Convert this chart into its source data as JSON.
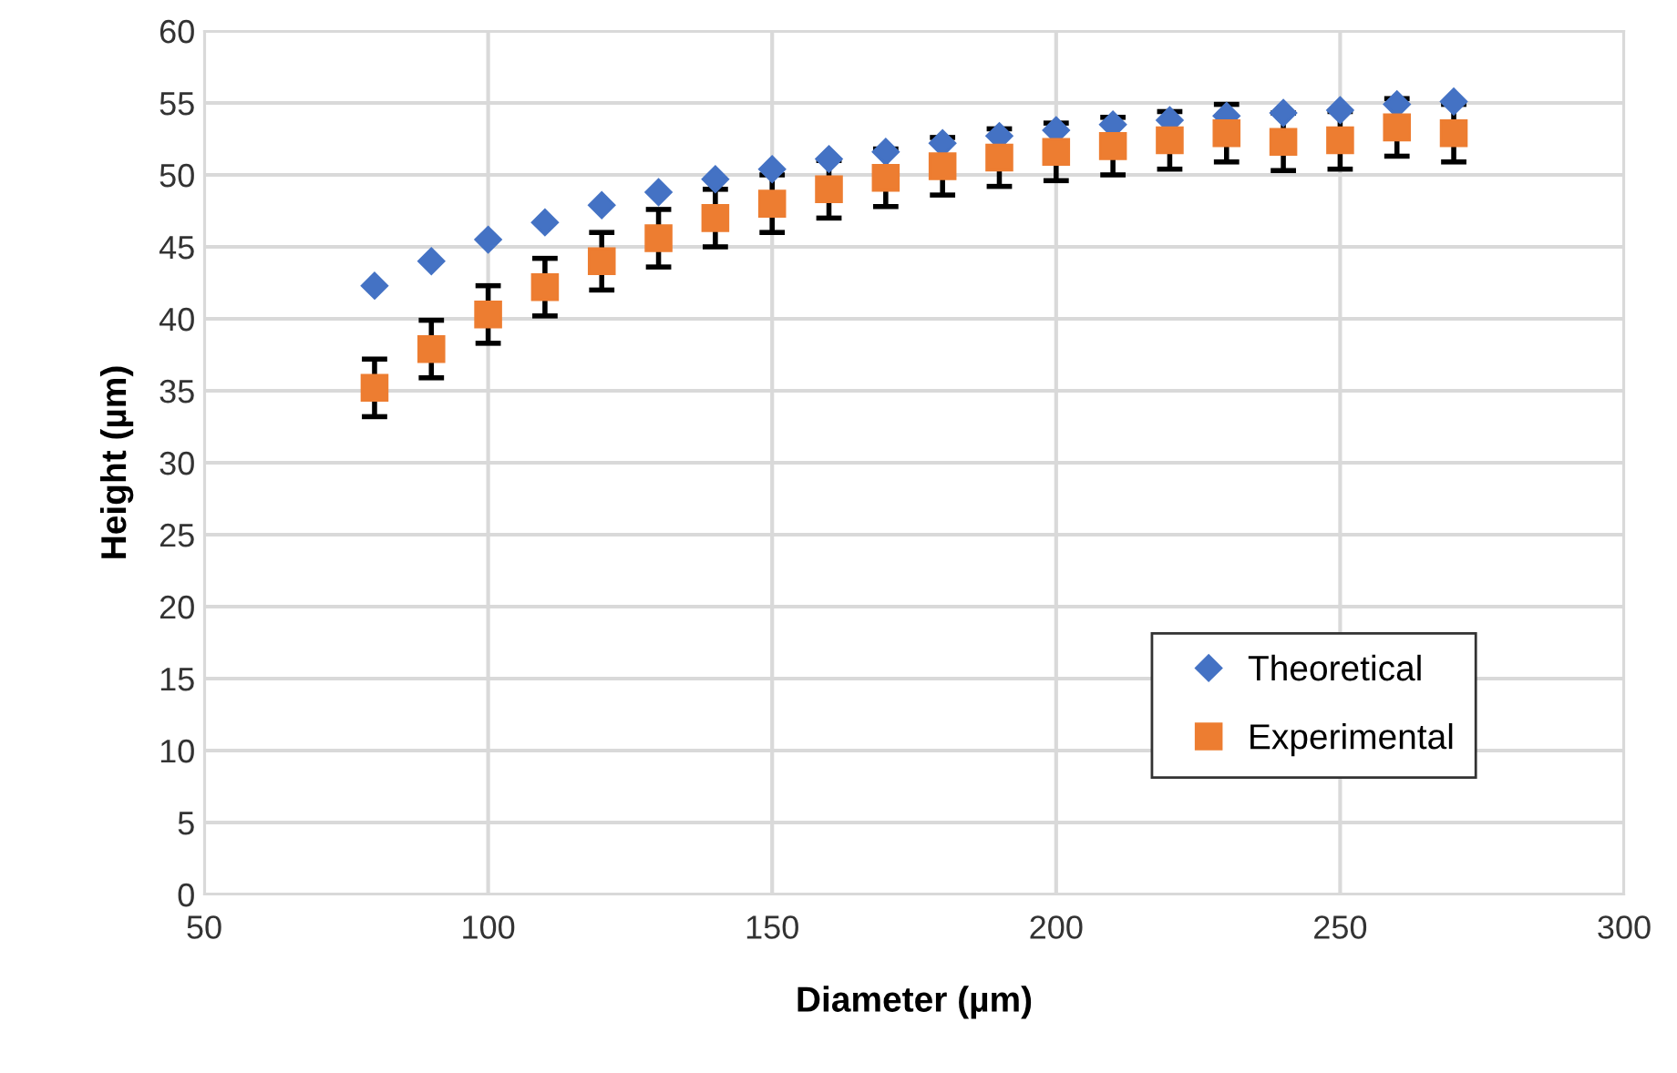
{
  "chart_data": {
    "type": "scatter",
    "xlabel": "Diameter (µm)",
    "ylabel": "Height (µm)",
    "xlim": [
      50,
      300
    ],
    "xticks": [
      50,
      100,
      150,
      200,
      250,
      300
    ],
    "ylim": [
      0,
      60
    ],
    "yticks": [
      0,
      5,
      10,
      15,
      20,
      25,
      30,
      35,
      40,
      45,
      50,
      55,
      60
    ],
    "grid": true,
    "legend": "bottom right",
    "series": [
      {
        "name": "Theoretical",
        "color": "#4472c4",
        "marker": "diamond",
        "x": [
          80,
          90,
          100,
          110,
          120,
          130,
          140,
          150,
          160,
          170,
          180,
          190,
          200,
          210,
          220,
          230,
          240,
          250,
          260,
          270
        ],
        "values": [
          42.3,
          44.0,
          45.5,
          46.7,
          47.9,
          48.8,
          49.7,
          50.4,
          51.1,
          51.6,
          52.2,
          52.7,
          53.1,
          53.5,
          53.8,
          54.1,
          54.3,
          54.5,
          54.9,
          55.1
        ]
      },
      {
        "name": "Experimental",
        "color": "#ed7d31",
        "marker": "square",
        "x": [
          80,
          90,
          100,
          110,
          120,
          130,
          140,
          150,
          160,
          170,
          180,
          190,
          200,
          210,
          220,
          230,
          240,
          250,
          260,
          270
        ],
        "values": [
          35.2,
          37.9,
          40.3,
          42.2,
          44.0,
          45.6,
          47.0,
          48.0,
          49.0,
          49.8,
          50.6,
          51.2,
          51.6,
          52.0,
          52.4,
          52.9,
          52.3,
          52.4,
          53.3,
          52.9
        ],
        "errors": [
          2,
          2,
          2,
          2,
          2,
          2,
          2,
          2,
          2,
          2,
          2,
          2,
          2,
          2,
          2,
          2,
          2,
          2,
          2,
          2
        ]
      }
    ]
  }
}
